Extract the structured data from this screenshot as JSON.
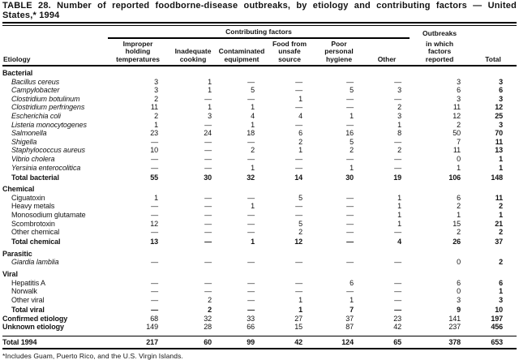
{
  "title": {
    "line1": "TABLE 28. Number of reported foodborne-disease outbreaks, by etiology and contributing factors — United",
    "line2": "States,* 1994"
  },
  "header": {
    "etiology": "Etiology",
    "contributing_factors": "Contributing factors",
    "outbreaks_top": "Outbreaks",
    "outbreaks_rest": "in which\nfactors\nreported",
    "columns": [
      "Improper\nholding\ntemperatures",
      "Inadequate\ncooking",
      "Contaminated\nequipment",
      "Food from\nunsafe\nsource",
      "Poor\npersonal\nhygiene",
      "Other"
    ],
    "total": "Total"
  },
  "rows": [
    {
      "type": "section",
      "label": "Bacterial"
    },
    {
      "type": "item",
      "italic": true,
      "label": "Bacillus cereus",
      "values": [
        "3",
        "1",
        "—",
        "—",
        "—",
        "—",
        "3",
        "3"
      ]
    },
    {
      "type": "item",
      "italic": true,
      "label": "Campylobacter",
      "values": [
        "3",
        "1",
        "5",
        "—",
        "5",
        "3",
        "6",
        "6"
      ]
    },
    {
      "type": "item",
      "italic": true,
      "label": "Clostridium botulinum",
      "values": [
        "2",
        "—",
        "—",
        "1",
        "—",
        "—",
        "3",
        "3"
      ]
    },
    {
      "type": "item",
      "italic": true,
      "label": "Clostridium perfringens",
      "values": [
        "11",
        "1",
        "1",
        "—",
        "—",
        "2",
        "11",
        "12"
      ]
    },
    {
      "type": "item",
      "italic": true,
      "label": "Escherichia coli",
      "values": [
        "2",
        "3",
        "4",
        "4",
        "1",
        "3",
        "12",
        "25"
      ]
    },
    {
      "type": "item",
      "italic": true,
      "label": "Listeria monocytogenes",
      "values": [
        "1",
        "—",
        "1",
        "—",
        "—",
        "1",
        "2",
        "3"
      ]
    },
    {
      "type": "item",
      "italic": true,
      "label": "Salmonella",
      "values": [
        "23",
        "24",
        "18",
        "6",
        "16",
        "8",
        "50",
        "70"
      ]
    },
    {
      "type": "item",
      "italic": true,
      "label": "Shigella",
      "values": [
        "—",
        "—",
        "—",
        "2",
        "5",
        "—",
        "7",
        "11"
      ]
    },
    {
      "type": "item",
      "italic": true,
      "label": "Staphylococcus aureus",
      "values": [
        "10",
        "—",
        "2",
        "1",
        "2",
        "2",
        "11",
        "13"
      ]
    },
    {
      "type": "item",
      "italic": true,
      "label": "Vibrio cholera",
      "values": [
        "—",
        "—",
        "—",
        "—",
        "—",
        "—",
        "0",
        "1"
      ]
    },
    {
      "type": "item",
      "italic": true,
      "label": "Yersinia enterocolitica",
      "values": [
        "—",
        "—",
        "1",
        "—",
        "1",
        "—",
        "1",
        "1"
      ]
    },
    {
      "type": "total",
      "label": "Total bacterial",
      "values": [
        "55",
        "30",
        "32",
        "14",
        "30",
        "19",
        "106",
        "148"
      ]
    },
    {
      "type": "section",
      "label": "Chemical"
    },
    {
      "type": "item",
      "italic": false,
      "label": "Ciguatoxin",
      "values": [
        "1",
        "—",
        "—",
        "5",
        "—",
        "1",
        "6",
        "11"
      ]
    },
    {
      "type": "item",
      "italic": false,
      "label": "Heavy metals",
      "values": [
        "—",
        "—",
        "1",
        "—",
        "—",
        "1",
        "2",
        "2"
      ]
    },
    {
      "type": "item",
      "italic": false,
      "label": "Monosodium glutamate",
      "values": [
        "—",
        "—",
        "—",
        "—",
        "—",
        "1",
        "1",
        "1"
      ]
    },
    {
      "type": "item",
      "italic": false,
      "label": "Scombrotoxin",
      "values": [
        "12",
        "—",
        "—",
        "5",
        "—",
        "1",
        "15",
        "21"
      ]
    },
    {
      "type": "item",
      "italic": false,
      "label": "Other chemical",
      "values": [
        "—",
        "—",
        "—",
        "2",
        "—",
        "—",
        "2",
        "2"
      ]
    },
    {
      "type": "total",
      "label": "Total chemical",
      "values": [
        "13",
        "—",
        "1",
        "12",
        "—",
        "4",
        "26",
        "37"
      ]
    },
    {
      "type": "section",
      "label": "Parasitic"
    },
    {
      "type": "item",
      "italic": true,
      "label": "Giardia lamblia",
      "values": [
        "—",
        "—",
        "—",
        "—",
        "—",
        "—",
        "0",
        "2"
      ]
    },
    {
      "type": "section",
      "label": "Viral"
    },
    {
      "type": "item",
      "italic": false,
      "label": "Hepatitis A",
      "values": [
        "—",
        "—",
        "—",
        "—",
        "6",
        "—",
        "6",
        "6"
      ]
    },
    {
      "type": "item",
      "italic": false,
      "label": "Norwalk",
      "values": [
        "—",
        "—",
        "—",
        "—",
        "—",
        "—",
        "0",
        "1"
      ]
    },
    {
      "type": "item",
      "italic": false,
      "label": "Other viral",
      "values": [
        "—",
        "2",
        "—",
        "1",
        "1",
        "—",
        "3",
        "3"
      ]
    },
    {
      "type": "total",
      "label": "Total viral",
      "values": [
        "—",
        "2",
        "—",
        "1",
        "7",
        "—",
        "9",
        "10"
      ]
    },
    {
      "type": "summary",
      "label": "Confirmed etiology",
      "values": [
        "68",
        "32",
        "33",
        "27",
        "37",
        "23",
        "141",
        "197"
      ]
    },
    {
      "type": "summary",
      "label": "Unknown etiology",
      "values": [
        "149",
        "28",
        "66",
        "15",
        "87",
        "42",
        "237",
        "456"
      ]
    },
    {
      "type": "grand",
      "label": "Total 1994",
      "values": [
        "217",
        "60",
        "99",
        "42",
        "124",
        "65",
        "378",
        "653"
      ]
    }
  ],
  "footnote": "*Includes Guam, Puerto Rico, and the U.S. Virgin Islands."
}
